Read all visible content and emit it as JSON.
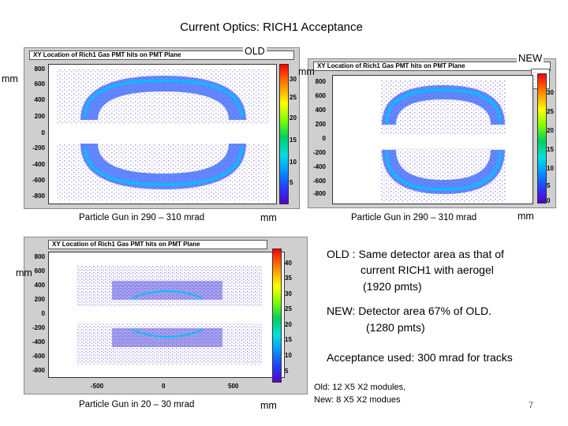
{
  "title": "Current Optics: RICH1 Acceptance",
  "plot_header": "XY Location of Rich1 Gas PMT hits on PMT Plane",
  "plot_old_label": "OLD",
  "plot_new_label": "NEW",
  "axis_unit": "mm",
  "plots": {
    "old": {
      "yticks": [
        "800",
        "600",
        "400",
        "200",
        "0",
        "-200",
        "-400",
        "-600",
        "-800"
      ],
      "zticks": [
        "30",
        "25",
        "20",
        "15",
        "10",
        "5"
      ],
      "caption": "Particle Gun in 290 – 310 mrad"
    },
    "new": {
      "yticks": [
        "800",
        "600",
        "400",
        "200",
        "0",
        "-200",
        "-400",
        "-600",
        "-800"
      ],
      "zticks": [
        "30",
        "25",
        "20",
        "15",
        "10",
        "5",
        "0"
      ],
      "caption": "Particle Gun in 290 – 310 mrad"
    },
    "low": {
      "yticks": [
        "800",
        "600",
        "400",
        "200",
        "0",
        "-200",
        "-400",
        "-600",
        "-800"
      ],
      "xticks": [
        "-500",
        "0",
        "500"
      ],
      "zticks": [
        "40",
        "35",
        "30",
        "25",
        "20",
        "15",
        "10",
        "5"
      ],
      "caption": "Particle Gun in 20 – 30 mrad"
    }
  },
  "notes": {
    "old_line1": "OLD : Same detector area  as that of",
    "old_line2": "current RICH1 with aerogel",
    "old_line3": "(1920 pmts)",
    "new_line1": "NEW:  Detector area 67% of OLD.",
    "new_line2": "(1280 pmts)",
    "acceptance": "Acceptance used: 300 mrad for tracks",
    "modules_old": "Old: 12 X5  X2 modules,",
    "modules_new": "New: 8 X5 X2  modues"
  },
  "page_number": "7"
}
